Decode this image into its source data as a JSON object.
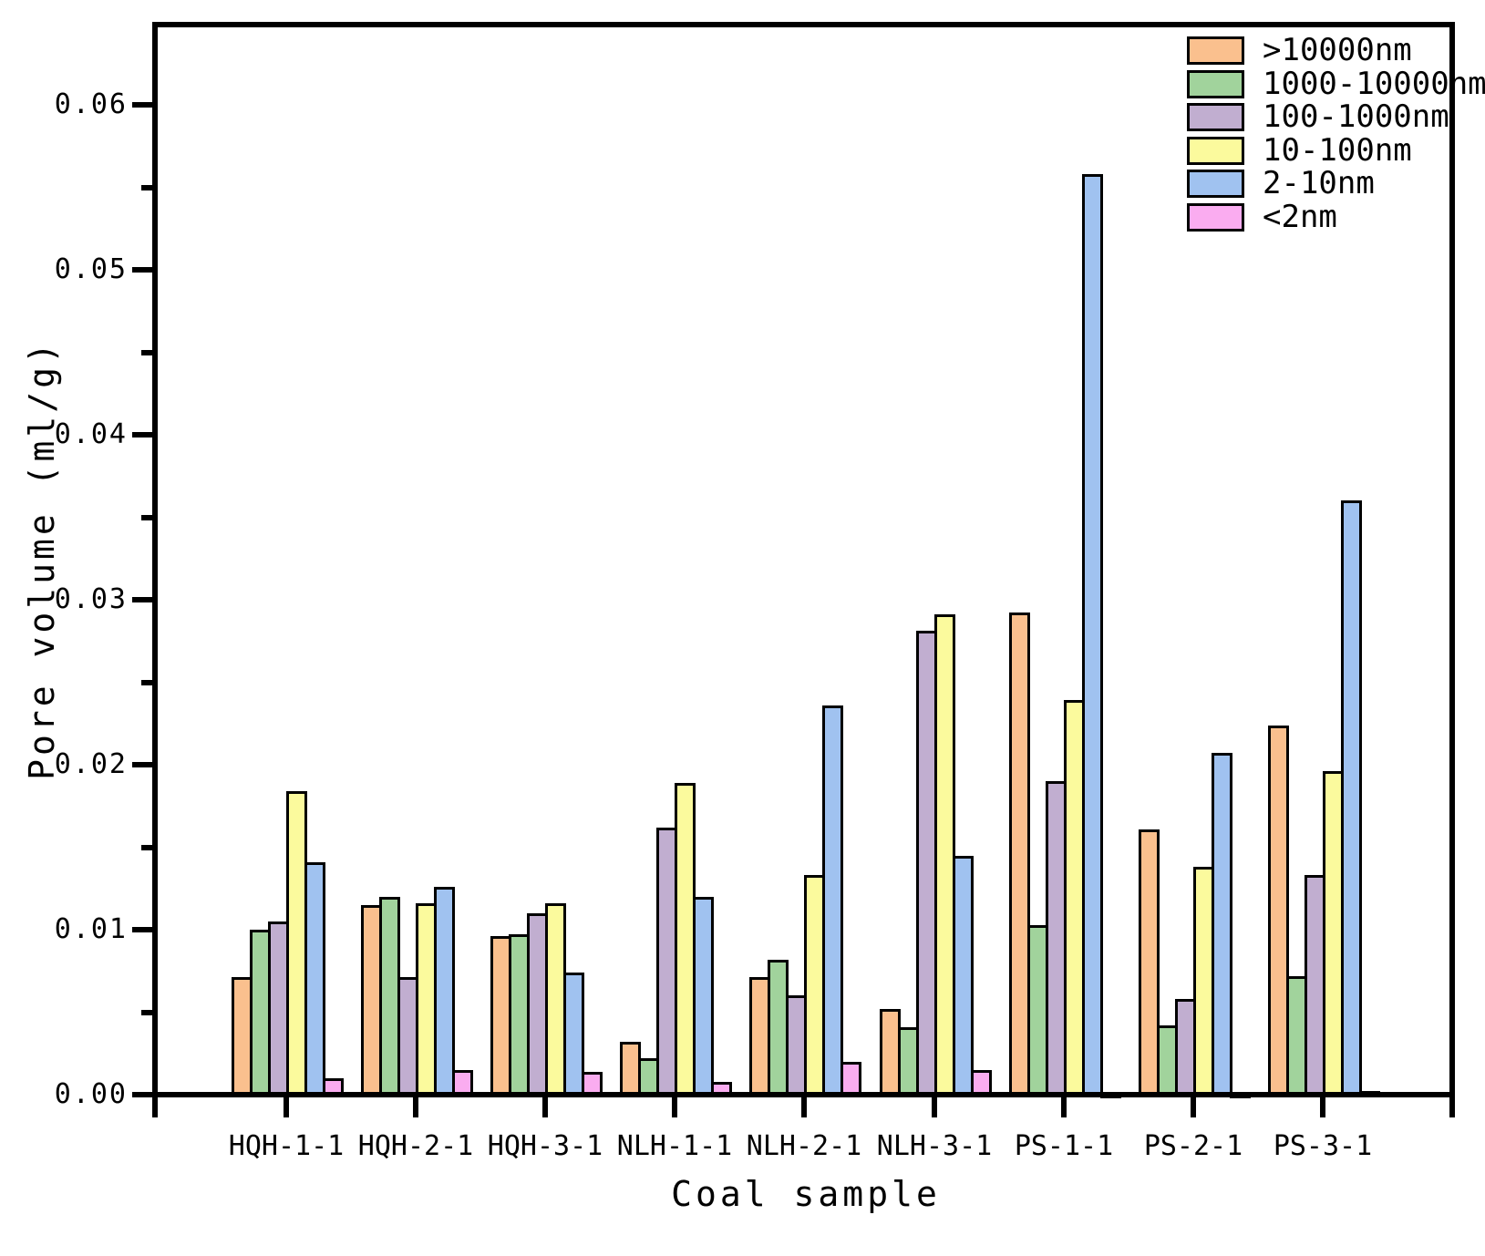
{
  "figure": {
    "background_color": "#FFFFFF",
    "frame_color": "#000000",
    "bar_outline_color": "#000000"
  },
  "chart_data": {
    "type": "bar",
    "title": "",
    "xlabel": "Coal sample",
    "ylabel": "Pore volume (ml/g)",
    "categories": [
      "HQH-1-1",
      "HQH-2-1",
      "HQH-3-1",
      "NLH-1-1",
      "NLH-2-1",
      "NLH-3-1",
      "PS-1-1",
      "PS-2-1",
      "PS-3-1"
    ],
    "series": [
      {
        "name": ">10000nm",
        "color": "#FAC08E",
        "values": [
          0.0071,
          0.0115,
          0.0096,
          0.0032,
          0.0071,
          0.0052,
          0.0292,
          0.0161,
          0.0224
        ]
      },
      {
        "name": "1000-10000nm",
        "color": "#A1D39C",
        "values": [
          0.01,
          0.012,
          0.0097,
          0.0022,
          0.0082,
          0.0041,
          0.0103,
          0.0042,
          0.0072
        ]
      },
      {
        "name": "100-1000nm",
        "color": "#C1AED0",
        "values": [
          0.0105,
          0.0071,
          0.011,
          0.0162,
          0.006,
          0.0281,
          0.019,
          0.0058,
          0.0133
        ]
      },
      {
        "name": "10-100nm",
        "color": "#FBFA9D",
        "values": [
          0.0184,
          0.0116,
          0.0116,
          0.0189,
          0.0133,
          0.0291,
          0.0239,
          0.0138,
          0.0196
        ]
      },
      {
        "name": "2-10nm",
        "color": "#A0C2F0",
        "values": [
          0.0141,
          0.0126,
          0.0074,
          0.012,
          0.0236,
          0.0145,
          0.0558,
          0.0207,
          0.036
        ]
      },
      {
        "name": "<2nm",
        "color": "#FAACF0",
        "values": [
          0.001,
          0.0015,
          0.0014,
          0.0008,
          0.002,
          0.0015,
          0.0001,
          0.0001,
          0.0002
        ]
      }
    ],
    "ylim": [
      0,
      0.065
    ],
    "ytick_labels": [
      "0.00",
      "0.01",
      "0.02",
      "0.03",
      "0.04",
      "0.05",
      "0.06"
    ],
    "ytick_values": [
      0.0,
      0.01,
      0.02,
      0.03,
      0.04,
      0.05,
      0.06
    ],
    "yminor_values": [
      0.005,
      0.015,
      0.025,
      0.035,
      0.045,
      0.055
    ],
    "grid": "off",
    "legend_position": "top-right"
  }
}
